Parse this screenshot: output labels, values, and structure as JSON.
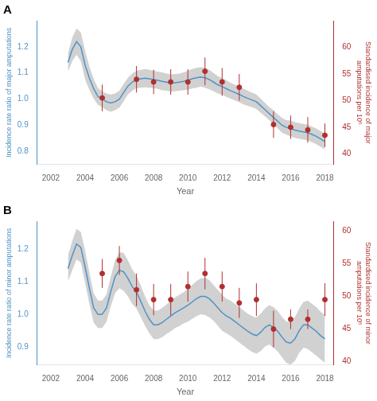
{
  "chart_data": [
    {
      "type": "line",
      "title": "A",
      "xlabel": "Year",
      "ylabel": "Incidence rate ratio of major amputations",
      "y2label": "Standardised incidence of major\namputations per 10⁵",
      "xlim": [
        2001.2,
        2018.5
      ],
      "xticks": [
        2002,
        2004,
        2006,
        2008,
        2010,
        2012,
        2014,
        2016,
        2018
      ],
      "ylim": [
        0.75,
        1.3
      ],
      "yticks": [
        0.8,
        0.9,
        {
          "value": 1.0,
          "label": "1.0"
        },
        1.1,
        1.2
      ],
      "y2lim": [
        38,
        65
      ],
      "y2ticks": [
        40,
        45,
        50,
        55,
        60
      ],
      "grid": false,
      "legend": false,
      "series": [
        {
          "type": "area",
          "color": "#b8b8b8",
          "x": [
            2003.0,
            2003.25,
            2003.5,
            2003.75,
            2004.0,
            2004.25,
            2004.5,
            2004.75,
            2005.0,
            2005.25,
            2005.5,
            2005.75,
            2006.0,
            2006.25,
            2006.5,
            2006.75,
            2007.0,
            2007.25,
            2007.5,
            2007.75,
            2008.0,
            2008.25,
            2008.5,
            2008.75,
            2009.0,
            2009.25,
            2009.5,
            2009.75,
            2010.0,
            2010.25,
            2010.5,
            2010.75,
            2011.0,
            2011.25,
            2011.5,
            2011.75,
            2012.0,
            2012.25,
            2012.5,
            2012.75,
            2013.0,
            2013.25,
            2013.5,
            2013.75,
            2014.0,
            2014.25,
            2014.5,
            2014.75,
            2015.0,
            2015.25,
            2015.5,
            2015.75,
            2016.0,
            2016.25,
            2016.5,
            2016.75,
            2017.0,
            2017.25,
            2017.5,
            2017.75,
            2018.0
          ],
          "upper": [
            1.175,
            1.235,
            1.27,
            1.255,
            1.185,
            1.125,
            1.078,
            1.042,
            1.03,
            1.022,
            1.018,
            1.022,
            1.032,
            1.058,
            1.082,
            1.098,
            1.108,
            1.112,
            1.115,
            1.112,
            1.108,
            1.105,
            1.102,
            1.098,
            1.095,
            1.096,
            1.098,
            1.102,
            1.108,
            1.115,
            1.12,
            1.122,
            1.12,
            1.112,
            1.1,
            1.088,
            1.08,
            1.072,
            1.062,
            1.055,
            1.048,
            1.04,
            1.032,
            1.025,
            1.018,
            1.002,
            0.986,
            0.97,
            0.958,
            0.942,
            0.928,
            0.92,
            0.918,
            0.912,
            0.908,
            0.905,
            0.902,
            0.895,
            0.888,
            0.878,
            0.868
          ],
          "lower": [
            1.105,
            1.145,
            1.17,
            1.145,
            1.075,
            1.035,
            1.002,
            0.978,
            0.97,
            0.958,
            0.952,
            0.958,
            0.968,
            0.992,
            1.018,
            1.032,
            1.042,
            1.044,
            1.045,
            1.044,
            1.042,
            1.039,
            1.034,
            1.032,
            1.029,
            1.03,
            1.032,
            1.034,
            1.036,
            1.041,
            1.044,
            1.048,
            1.044,
            1.038,
            1.03,
            1.022,
            1.016,
            1.008,
            1.002,
            0.995,
            0.988,
            0.98,
            0.974,
            0.969,
            0.962,
            0.948,
            0.934,
            0.92,
            0.902,
            0.888,
            0.872,
            0.864,
            0.858,
            0.852,
            0.848,
            0.845,
            0.842,
            0.835,
            0.828,
            0.818,
            0.808
          ]
        },
        {
          "type": "line",
          "color": "#4e93c8",
          "x": [
            2003.0,
            2003.25,
            2003.5,
            2003.75,
            2004.0,
            2004.25,
            2004.5,
            2004.75,
            2005.0,
            2005.25,
            2005.5,
            2005.75,
            2006.0,
            2006.25,
            2006.5,
            2006.75,
            2007.0,
            2007.25,
            2007.5,
            2007.75,
            2008.0,
            2008.25,
            2008.5,
            2008.75,
            2009.0,
            2009.25,
            2009.5,
            2009.75,
            2010.0,
            2010.25,
            2010.5,
            2010.75,
            2011.0,
            2011.25,
            2011.5,
            2011.75,
            2012.0,
            2012.25,
            2012.5,
            2012.75,
            2013.0,
            2013.25,
            2013.5,
            2013.75,
            2014.0,
            2014.25,
            2014.5,
            2014.75,
            2015.0,
            2015.25,
            2015.5,
            2015.75,
            2016.0,
            2016.25,
            2016.5,
            2016.75,
            2017.0,
            2017.25,
            2017.5,
            2017.75,
            2018.0
          ],
          "values": [
            1.14,
            1.19,
            1.22,
            1.2,
            1.13,
            1.08,
            1.04,
            1.01,
            1.0,
            0.99,
            0.985,
            0.99,
            1.0,
            1.025,
            1.05,
            1.065,
            1.075,
            1.078,
            1.08,
            1.078,
            1.075,
            1.072,
            1.068,
            1.065,
            1.062,
            1.063,
            1.065,
            1.068,
            1.072,
            1.078,
            1.082,
            1.085,
            1.082,
            1.075,
            1.065,
            1.055,
            1.048,
            1.04,
            1.032,
            1.025,
            1.018,
            1.01,
            1.003,
            0.997,
            0.99,
            0.975,
            0.96,
            0.945,
            0.93,
            0.915,
            0.9,
            0.892,
            0.888,
            0.882,
            0.878,
            0.875,
            0.872,
            0.865,
            0.858,
            0.848,
            0.838
          ]
        },
        {
          "type": "scatter",
          "axis": "y2",
          "color": "#b03030",
          "x": [
            2005,
            2007,
            2008,
            2009,
            2010,
            2011,
            2012,
            2013,
            2015,
            2016,
            2017,
            2018
          ],
          "values": [
            50.5,
            54.0,
            53.5,
            53.5,
            53.5,
            55.5,
            53.5,
            52.5,
            45.5,
            45.0,
            44.5,
            43.5
          ],
          "errors": [
            2.5,
            2.5,
            2.3,
            2.4,
            2.4,
            2.6,
            2.6,
            2.5,
            2.5,
            2.2,
            2.4,
            2.2
          ]
        }
      ]
    },
    {
      "type": "line",
      "title": "B",
      "xlabel": "Year",
      "ylabel": "Incidence rate ratio of minor amputations",
      "y2label": "Standardised incidence of minor\namputations per 10⁵",
      "xlim": [
        2001.2,
        2018.5
      ],
      "xticks": [
        2002,
        2004,
        2006,
        2008,
        2010,
        2012,
        2014,
        2016,
        2018
      ],
      "ylim": [
        0.845,
        1.285
      ],
      "yticks": [
        0.9,
        {
          "value": 1.0,
          "label": "1.0"
        },
        1.1,
        1.2
      ],
      "y2lim": [
        39.5,
        61.5
      ],
      "y2ticks": [
        40,
        45,
        50,
        55,
        60
      ],
      "grid": false,
      "legend": false,
      "series": [
        {
          "type": "area",
          "color": "#b8b8b8",
          "x": [
            2003.0,
            2003.25,
            2003.5,
            2003.75,
            2004.0,
            2004.25,
            2004.5,
            2004.75,
            2005.0,
            2005.25,
            2005.5,
            2005.75,
            2006.0,
            2006.25,
            2006.5,
            2006.75,
            2007.0,
            2007.25,
            2007.5,
            2007.75,
            2008.0,
            2008.25,
            2008.5,
            2008.75,
            2009.0,
            2009.25,
            2009.5,
            2009.75,
            2010.0,
            2010.25,
            2010.5,
            2010.75,
            2011.0,
            2011.25,
            2011.5,
            2011.75,
            2012.0,
            2012.25,
            2012.5,
            2012.75,
            2013.0,
            2013.25,
            2013.5,
            2013.75,
            2014.0,
            2014.25,
            2014.5,
            2014.75,
            2015.0,
            2015.25,
            2015.5,
            2015.75,
            2016.0,
            2016.25,
            2016.5,
            2016.75,
            2017.0,
            2017.25,
            2017.5,
            2017.75,
            2018.0
          ],
          "upper": [
            1.18,
            1.225,
            1.262,
            1.252,
            1.195,
            1.128,
            1.065,
            1.042,
            1.042,
            1.062,
            1.115,
            1.165,
            1.19,
            1.188,
            1.165,
            1.138,
            1.118,
            1.088,
            1.055,
            1.028,
            1.012,
            1.012,
            1.02,
            1.03,
            1.042,
            1.052,
            1.06,
            1.068,
            1.078,
            1.09,
            1.102,
            1.11,
            1.112,
            1.105,
            1.09,
            1.075,
            1.06,
            1.048,
            1.042,
            1.032,
            1.022,
            1.012,
            1.002,
            0.995,
            0.99,
            1.002,
            1.018,
            1.028,
            1.022,
            1.01,
            0.992,
            0.978,
            0.978,
            0.992,
            1.018,
            1.038,
            1.042,
            1.032,
            1.022,
            1.008,
            0.998
          ],
          "lower": [
            1.1,
            1.135,
            1.168,
            1.158,
            1.095,
            1.032,
            0.975,
            0.958,
            0.958,
            0.978,
            1.025,
            1.065,
            1.08,
            1.072,
            1.055,
            1.032,
            1.018,
            0.992,
            0.965,
            0.942,
            0.924,
            0.924,
            0.93,
            0.94,
            0.948,
            0.958,
            0.964,
            0.972,
            0.978,
            0.986,
            0.994,
            1.0,
            0.998,
            0.991,
            0.98,
            0.965,
            0.95,
            0.942,
            0.934,
            0.924,
            0.914,
            0.904,
            0.894,
            0.885,
            0.88,
            0.888,
            0.902,
            0.908,
            0.898,
            0.886,
            0.868,
            0.852,
            0.846,
            0.858,
            0.882,
            0.898,
            0.894,
            0.884,
            0.874,
            0.862,
            0.852
          ]
        },
        {
          "type": "line",
          "color": "#4e93c8",
          "x": [
            2003.0,
            2003.25,
            2003.5,
            2003.75,
            2004.0,
            2004.25,
            2004.5,
            2004.75,
            2005.0,
            2005.25,
            2005.5,
            2005.75,
            2006.0,
            2006.25,
            2006.5,
            2006.75,
            2007.0,
            2007.25,
            2007.5,
            2007.75,
            2008.0,
            2008.25,
            2008.5,
            2008.75,
            2009.0,
            2009.25,
            2009.5,
            2009.75,
            2010.0,
            2010.25,
            2010.5,
            2010.75,
            2011.0,
            2011.25,
            2011.5,
            2011.75,
            2012.0,
            2012.25,
            2012.5,
            2012.75,
            2013.0,
            2013.25,
            2013.5,
            2013.75,
            2014.0,
            2014.25,
            2014.5,
            2014.75,
            2015.0,
            2015.25,
            2015.5,
            2015.75,
            2016.0,
            2016.25,
            2016.5,
            2016.75,
            2017.0,
            2017.25,
            2017.5,
            2017.75,
            2018.0
          ],
          "values": [
            1.14,
            1.18,
            1.215,
            1.205,
            1.145,
            1.08,
            1.02,
            1.0,
            1.0,
            1.02,
            1.07,
            1.115,
            1.135,
            1.13,
            1.11,
            1.085,
            1.068,
            1.04,
            1.01,
            0.985,
            0.968,
            0.968,
            0.975,
            0.985,
            0.995,
            1.005,
            1.012,
            1.02,
            1.028,
            1.038,
            1.048,
            1.055,
            1.055,
            1.048,
            1.035,
            1.02,
            1.005,
            0.995,
            0.988,
            0.978,
            0.968,
            0.958,
            0.948,
            0.94,
            0.935,
            0.945,
            0.96,
            0.968,
            0.96,
            0.948,
            0.93,
            0.915,
            0.912,
            0.925,
            0.95,
            0.968,
            0.968,
            0.958,
            0.948,
            0.935,
            0.925
          ]
        },
        {
          "type": "scatter",
          "axis": "y2",
          "color": "#b03030",
          "x": [
            2005,
            2006,
            2007,
            2008,
            2009,
            2010,
            2011,
            2012,
            2013,
            2014,
            2015,
            2016,
            2017,
            2018
          ],
          "values": [
            53.5,
            55.5,
            51.0,
            49.5,
            49.5,
            51.5,
            53.5,
            51.5,
            49.0,
            49.5,
            45.0,
            46.5,
            46.5,
            49.5
          ],
          "errors": [
            2.2,
            2.2,
            2.5,
            2.4,
            2.4,
            2.3,
            2.4,
            2.3,
            2.3,
            2.5,
            2.8,
            1.5,
            1.5,
            2.5
          ]
        }
      ]
    }
  ]
}
